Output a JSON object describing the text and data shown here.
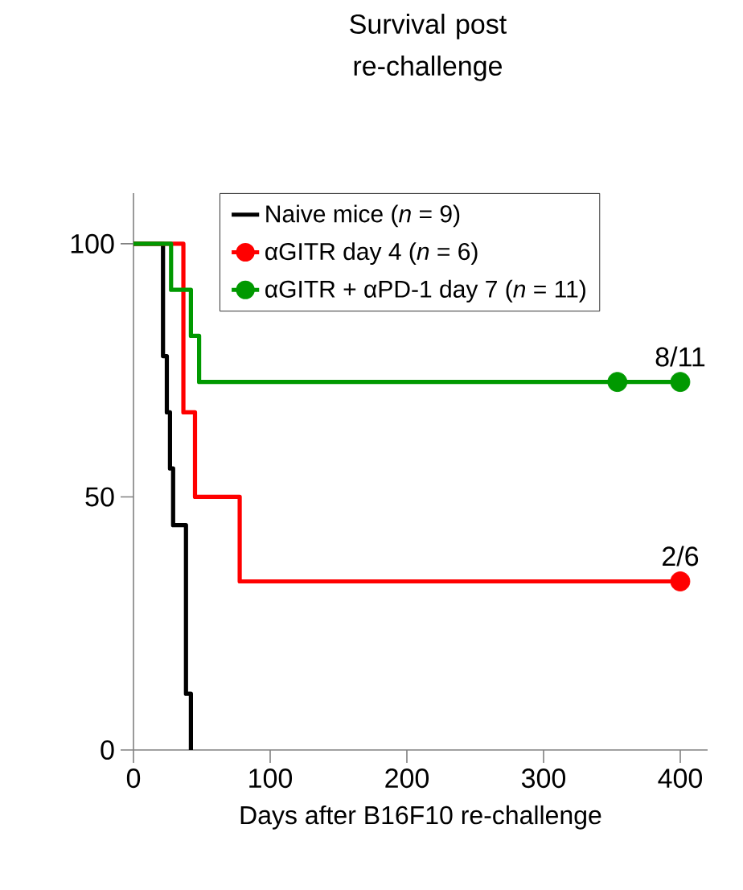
{
  "chart_data": {
    "type": "step",
    "title": "Survival post re-challenge",
    "xlabel": "Days after B16F10 re-challenge",
    "xlim": [
      0,
      420
    ],
    "ylim": [
      0,
      110
    ],
    "xticks": [
      0,
      100,
      200,
      300,
      400
    ],
    "yticks": [
      0,
      50,
      100
    ],
    "legend": "top",
    "grid": false,
    "series": [
      {
        "name": "Naive mice (*n* = 9)",
        "color": "#000000",
        "x": [
          0,
          21.6,
          24.4,
          26.7,
          29,
          38.4,
          42
        ],
        "values": [
          100,
          77.8,
          66.7,
          55.6,
          44.4,
          11.1,
          0
        ],
        "marker": "none"
      },
      {
        "name": "αGITR day 4 (*n* = 6)",
        "color": "#ff0000",
        "x": [
          0,
          36.5,
          45,
          77.7,
          400
        ],
        "values": [
          100,
          66.7,
          50,
          33.3,
          33.3
        ],
        "marker": "none"
      },
      {
        "name": "αGITR + αPD-1 day 7 (*n* = 11)",
        "color": "#009900",
        "x": [
          0,
          27.5,
          42,
          48,
          400
        ],
        "values": [
          100,
          90.9,
          81.8,
          72.7,
          72.7
        ],
        "marker": "none"
      },
      {
        "type": "scatter",
        "color": "#ff0000",
        "x": [
          400
        ],
        "values": [
          33.3
        ],
        "marker": "circle"
      },
      {
        "type": "scatter",
        "color": "#009900",
        "x": [
          354,
          400
        ],
        "values": [
          72.7,
          72.7
        ],
        "marker": "circle"
      }
    ],
    "annotations": [
      {
        "text": "8/11",
        "x": 400,
        "y": 72.7
      },
      {
        "text": "2/6",
        "x": 400,
        "y": 33.3
      }
    ]
  }
}
